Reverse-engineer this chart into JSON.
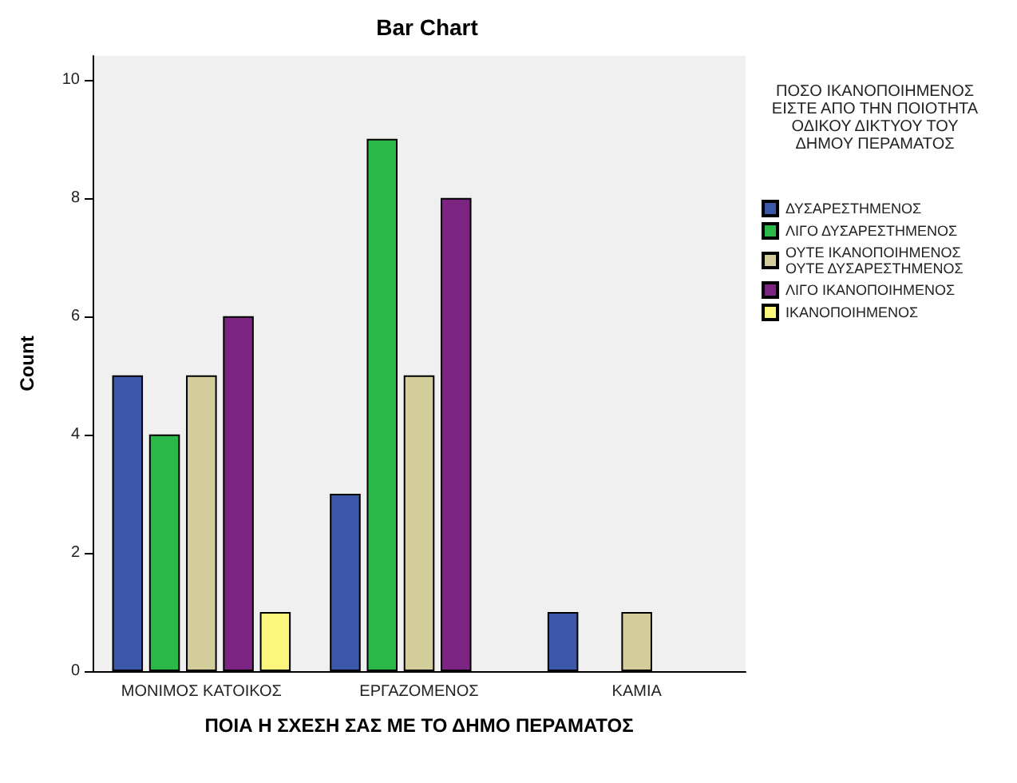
{
  "chart_data": {
    "type": "bar",
    "title": "Bar Chart",
    "xlabel": "ΠΟΙΑ Η ΣΧΕΣΗ ΣΑΣ ΜΕ ΤΟ ΔΗΜΟ ΠΕΡΑΜΑΤΟΣ",
    "ylabel": "Count",
    "legend_title": "ΠΟΣΟ ΙΚΑΝΟΠΟΙΗΜΕΝΟΣ ΕΙΣΤΕ ΑΠΟ ΤΗΝ ΠΟΙΟΤΗΤΑ ΟΔΙΚΟΥ ΔΙΚΤΥΟΥ ΤΟΥ ΔΗΜΟΥ ΠΕΡΑΜΑΤΟΣ",
    "categories": [
      "ΜΟΝΙΜΟΣ ΚΑΤΟΙΚΟΣ",
      "ΕΡΓΑΖΟΜΕΝΟΣ",
      "ΚΑΜΙΑ"
    ],
    "series": [
      {
        "name": "ΔΥΣΑΡΕΣΤΗΜΕΝΟΣ",
        "color": "#3c56a8",
        "values": [
          5,
          3,
          1
        ]
      },
      {
        "name": "ΛΙΓΟ ΔΥΣΑΡΕΣΤΗΜΕΝΟΣ",
        "color": "#2cb74a",
        "values": [
          4,
          9,
          null
        ]
      },
      {
        "name": "ΟΥΤΕ ΙΚΑΝΟΠΟΙΗΜΕΝΟΣ ΟΥΤΕ ΔΥΣΑΡΕΣΤΗΜΕΝΟΣ",
        "color": "#d3cd9b",
        "values": [
          5,
          5,
          1
        ]
      },
      {
        "name": "ΛΙΓΟ ΙΚΑΝΟΠΟΙΗΜΕΝΟΣ",
        "color": "#7b2480",
        "values": [
          6,
          8,
          null
        ]
      },
      {
        "name": "ΙΚΑΝΟΠΟΙΗΜΕΝΟΣ",
        "color": "#fbf77e",
        "values": [
          1,
          null,
          null
        ]
      }
    ],
    "ylim": [
      0,
      10.4
    ],
    "yticks": [
      0,
      2,
      4,
      6,
      8,
      10
    ],
    "grid": false,
    "legend": "right"
  }
}
